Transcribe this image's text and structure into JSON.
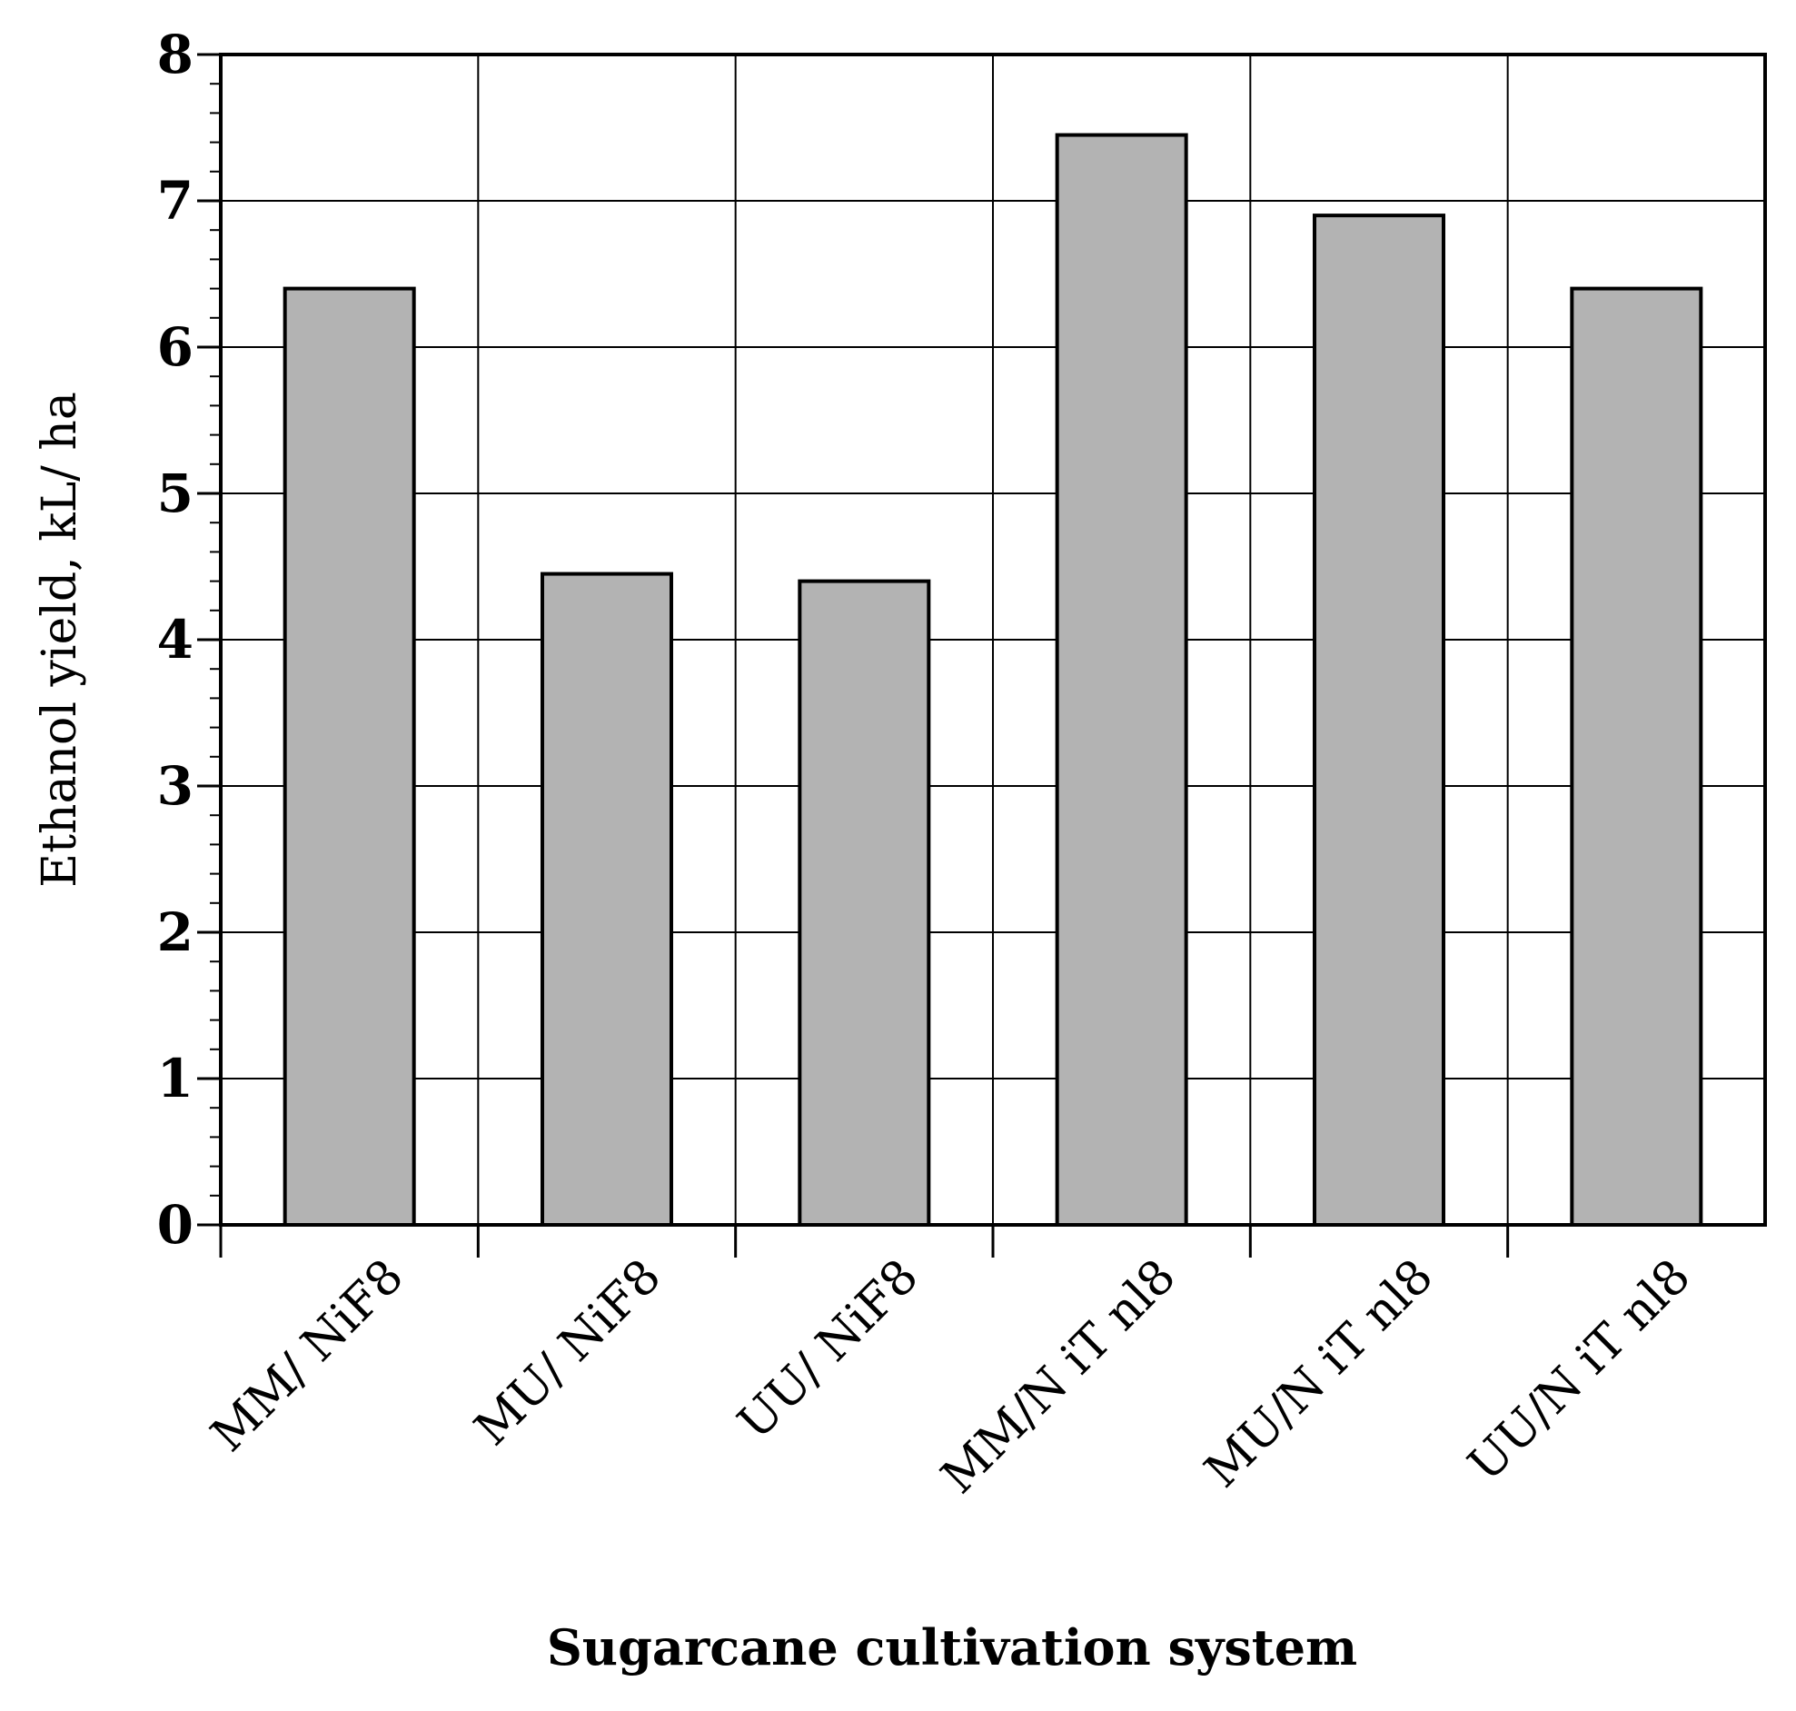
{
  "chart_data": {
    "type": "bar",
    "title": "",
    "xlabel": "Sugarcane cultivation system",
    "ylabel": "Ethanol yield, kL/ ha",
    "categories": [
      "MM/ NiF8",
      "MU/ NiF8",
      "UU/ NiF8",
      "MM/N iT nl8",
      "MU/N iT nl8",
      "UU/N iT nl8"
    ],
    "values": [
      6.4,
      4.45,
      4.4,
      7.45,
      6.9,
      6.4
    ],
    "ylim": [
      0,
      8
    ],
    "yticks": [
      "0",
      "1",
      "2",
      "3",
      "4",
      "5",
      "6",
      "7",
      "8"
    ],
    "grid": true,
    "legend": "none",
    "bar_color": "#b3b3b3",
    "edge_color": "#000000"
  }
}
